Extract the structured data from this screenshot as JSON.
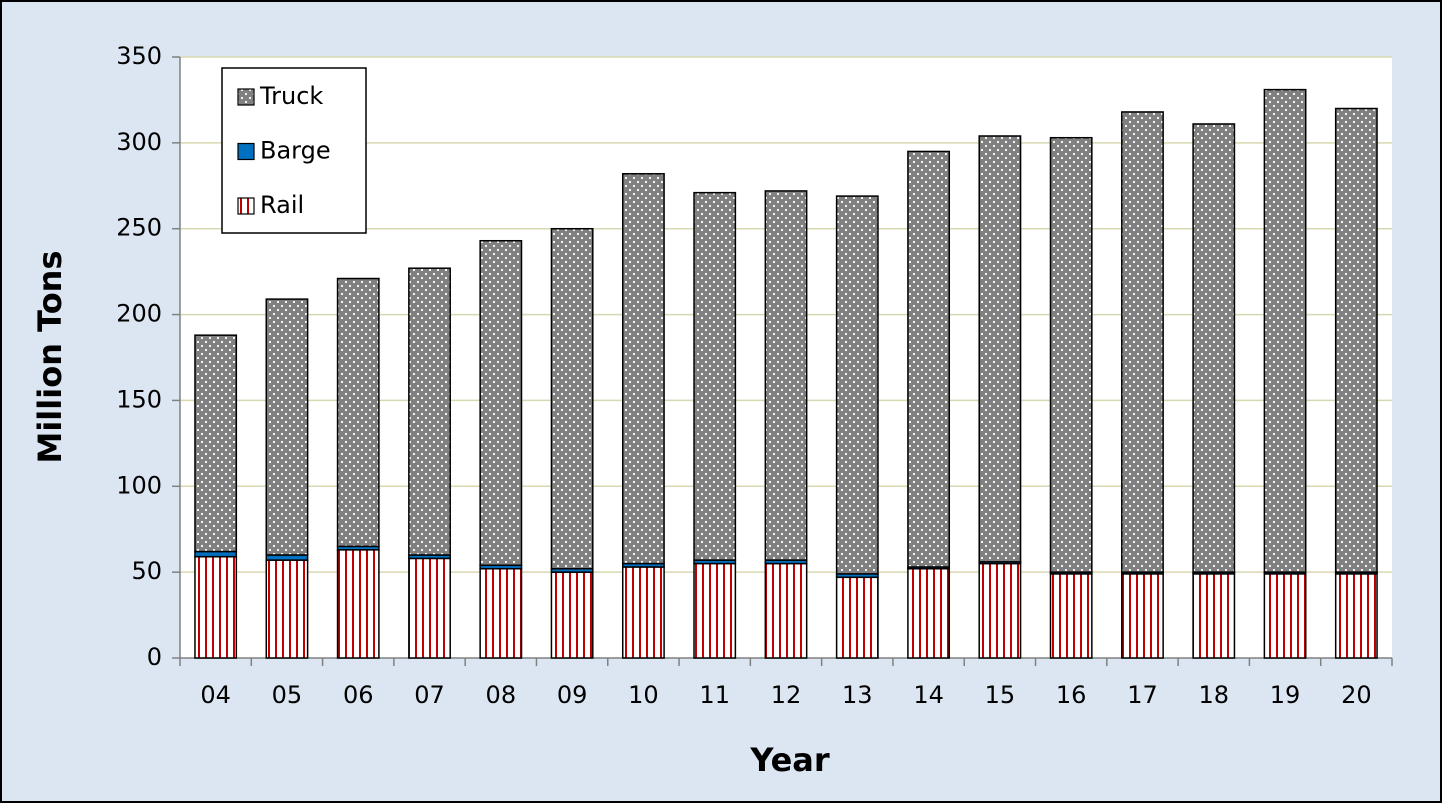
{
  "chart_data": {
    "type": "stacked-bar",
    "x_label": "Year",
    "y_label": "Million Tons",
    "categories": [
      "04",
      "05",
      "06",
      "07",
      "08",
      "09",
      "10",
      "11",
      "12",
      "13",
      "14",
      "15",
      "16",
      "17",
      "18",
      "19",
      "20"
    ],
    "series": [
      {
        "name": "Rail",
        "color": "#c00000",
        "pattern": "stripes",
        "values": [
          59,
          57,
          63,
          58,
          52,
          50,
          53,
          55,
          55,
          47,
          52,
          55,
          49,
          49,
          49,
          49,
          49
        ]
      },
      {
        "name": "Barge",
        "color": "#0070c0",
        "pattern": "solid",
        "values": [
          3,
          3,
          2,
          2,
          2,
          2,
          2,
          2,
          2,
          2,
          1,
          1,
          1,
          1,
          1,
          1,
          1
        ]
      },
      {
        "name": "Truck",
        "color": "#808080",
        "pattern": "dots",
        "values": [
          126,
          149,
          156,
          167,
          189,
          198,
          227,
          214,
          215,
          220,
          242,
          248,
          253,
          268,
          261,
          281,
          270
        ]
      }
    ],
    "ylim": [
      0,
      350
    ],
    "yticks": [
      0,
      50,
      100,
      150,
      200,
      250,
      300,
      350
    ],
    "grid": true,
    "legend": "upper left"
  }
}
